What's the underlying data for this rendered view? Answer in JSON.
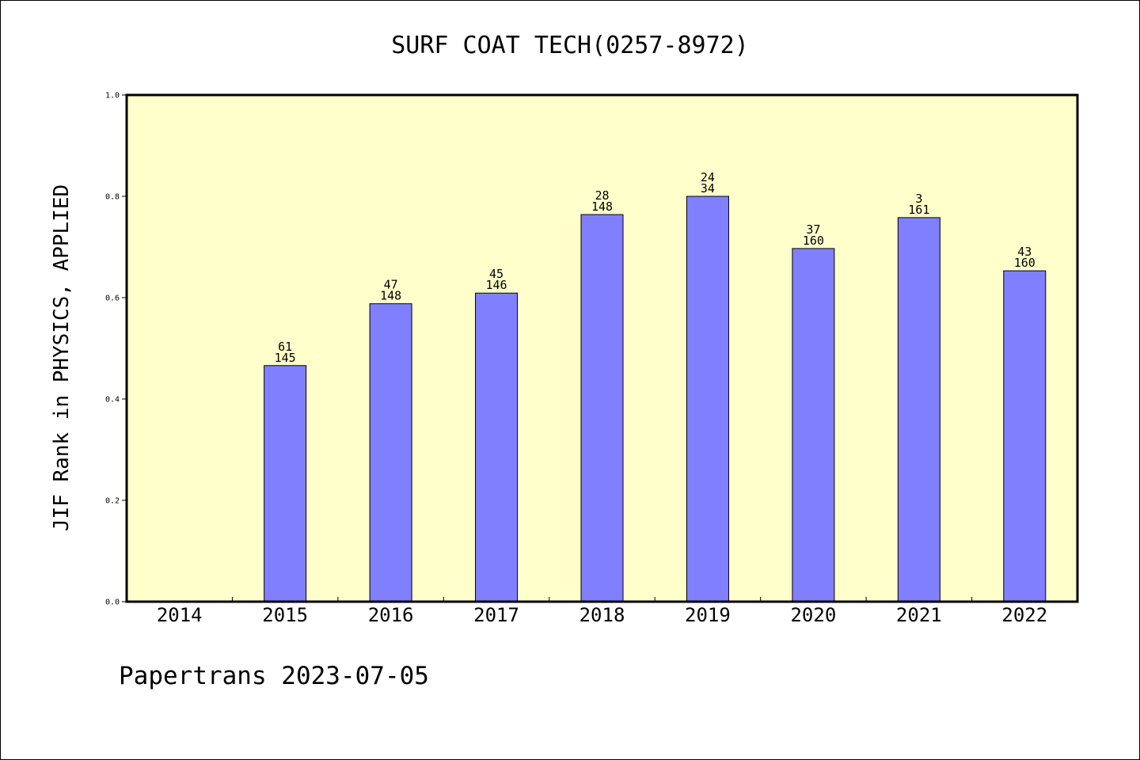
{
  "chart_data": {
    "type": "bar",
    "title": "SURF COAT TECH(0257-8972)",
    "xlabel": "",
    "ylabel": "JIF Rank in PHYSICS, APPLIED",
    "ylim": [
      0,
      1.0
    ],
    "yticks": [
      "0.0",
      "0.2",
      "0.4",
      "0.6",
      "0.8",
      "1.0"
    ],
    "categories": [
      "2014",
      "2015",
      "2016",
      "2017",
      "2018",
      "2019",
      "2020",
      "2021",
      "2022"
    ],
    "values": [
      null,
      0.466,
      0.588,
      0.609,
      0.764,
      0.8,
      0.697,
      0.758,
      0.653
    ],
    "rank_labels": [
      "",
      "61",
      "47",
      "45",
      "28",
      "24",
      "37",
      "3",
      "43"
    ],
    "total_labels": [
      "",
      "145",
      "148",
      "146",
      "148",
      "34",
      "160",
      "161",
      "160"
    ],
    "grid": false,
    "colors": {
      "bar": "#8080ff",
      "plot_background": "#ffffcc"
    }
  },
  "footer": "Papertrans 2023-07-05"
}
